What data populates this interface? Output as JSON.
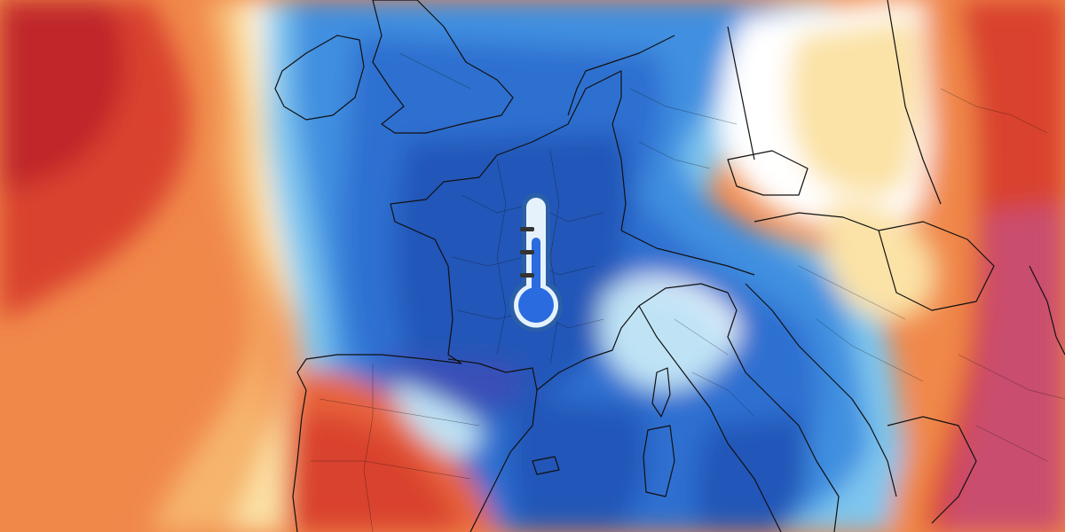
{
  "map": {
    "colors": {
      "deep_red": "#c0262a",
      "red": "#d9432f",
      "orange_red": "#e8643a",
      "orange": "#f0884a",
      "light_orange": "#f6b46c",
      "pale_yellow": "#fbe2a6",
      "white": "#ffffff",
      "pale_blue": "#bfe3f5",
      "light_blue": "#7ec6ee",
      "mid_blue": "#3f8fe0",
      "blue": "#2f6fd0",
      "deep_blue": "#2456b8",
      "indigo": "#3a4fb8",
      "magenta": "#c94d6e",
      "borders": "#111111"
    }
  },
  "thermometer": {
    "icon": "thermometer-cold-icon",
    "tube_color": "#e6f2fb",
    "outline_color": "#2b5fa8",
    "liquid_color": "#2a6be0",
    "tick_color": "#333333"
  }
}
